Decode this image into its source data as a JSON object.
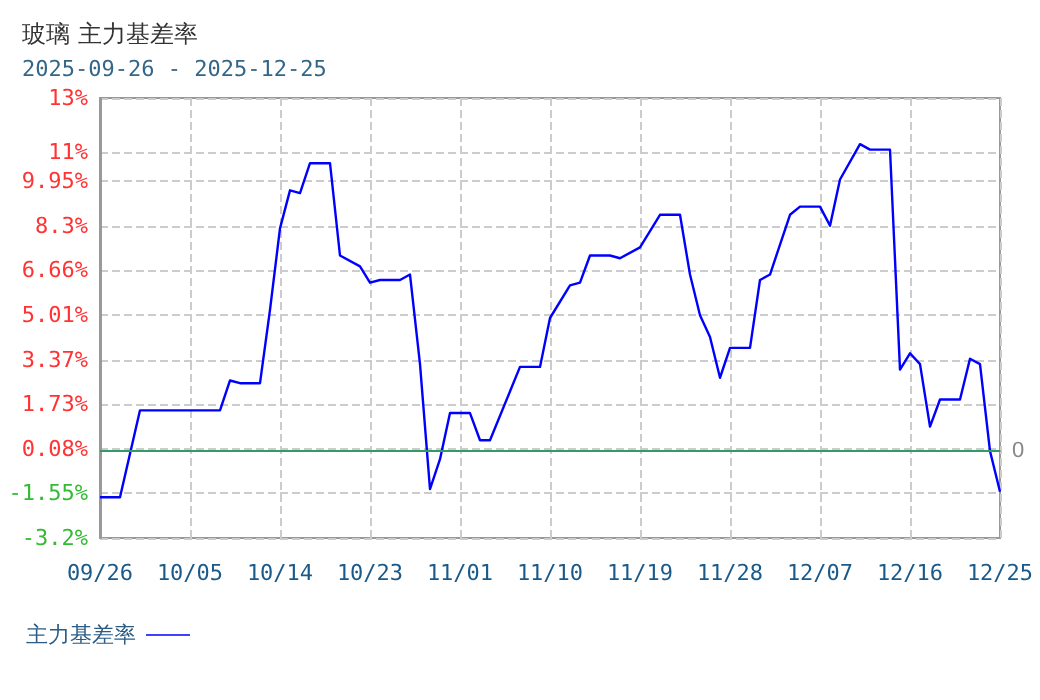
{
  "chart_data": {
    "type": "line",
    "title": "玻璃 主力基差率",
    "subtitle": "2025-09-26 - 2025-12-25",
    "x": [
      "--09-26",
      "--09-28",
      "--09-29",
      "--09-30",
      "--10-08",
      "--10-09",
      "--10-10",
      "--10-12",
      "--10-13",
      "--10-14",
      "--10-15",
      "--10-16",
      "--10-17",
      "--10-19",
      "--10-20",
      "--10-22",
      "--10-23",
      "--10-24",
      "--10-26",
      "--10-27",
      "--10-28",
      "--10-29",
      "--10-30",
      "--10-31",
      "--11-02",
      "--11-03",
      "--11-04",
      "--11-07",
      "--11-09",
      "--11-10",
      "--11-12",
      "--11-13",
      "--11-14",
      "--11-16",
      "--11-17",
      "--11-19",
      "--11-21",
      "--11-23",
      "--11-24",
      "--11-25",
      "--11-26",
      "--11-27",
      "--11-28",
      "--11-30",
      "--12-01",
      "--12-02",
      "--12-04",
      "--12-05",
      "--12-07",
      "--12-08",
      "--12-09",
      "--12-11",
      "--12-12",
      "--12-14",
      "--12-15",
      "--12-16",
      "--12-17",
      "--12-18",
      "--12-19",
      "--12-21",
      "--12-22",
      "--12-23",
      "--12-24",
      "--12-25"
    ],
    "series": [
      {
        "name": "主力基差率",
        "color": "#0000ff",
        "values": [
          -1.7,
          -1.7,
          -0.1,
          1.5,
          1.5,
          2.6,
          2.5,
          2.5,
          5.2,
          8.2,
          9.6,
          9.5,
          10.6,
          10.6,
          7.2,
          6.8,
          6.2,
          6.3,
          6.3,
          6.5,
          3.2,
          -1.4,
          -0.3,
          1.4,
          1.4,
          0.4,
          0.4,
          3.1,
          3.1,
          4.9,
          6.1,
          6.2,
          7.2,
          7.2,
          7.1,
          7.5,
          8.7,
          8.7,
          6.5,
          5.0,
          4.2,
          2.7,
          3.8,
          3.8,
          6.3,
          6.5,
          8.7,
          9.0,
          9.0,
          8.3,
          10.0,
          11.3,
          11.1,
          11.1,
          3.0,
          3.6,
          3.2,
          0.9,
          1.9,
          1.9,
          3.4,
          3.2,
          0.0,
          -1.5
        ]
      }
    ],
    "xlim": [
      "--09-26",
      "--12-25"
    ],
    "xticks": [
      {
        "value": "--09-26",
        "label": "09/26"
      },
      {
        "value": "--10-05",
        "label": "10/05"
      },
      {
        "value": "--10-14",
        "label": "10/14"
      },
      {
        "value": "--10-23",
        "label": "10/23"
      },
      {
        "value": "--11-01",
        "label": "11/01"
      },
      {
        "value": "--11-10",
        "label": "11/10"
      },
      {
        "value": "--11-19",
        "label": "11/19"
      },
      {
        "value": "--11-28",
        "label": "11/28"
      },
      {
        "value": "--12-07",
        "label": "12/07"
      },
      {
        "value": "--12-16",
        "label": "12/16"
      },
      {
        "value": "--12-25",
        "label": "12/25"
      }
    ],
    "ylim": [
      -3.2,
      13
    ],
    "yticks": [
      {
        "value": -3.2,
        "label": "-3.2%"
      },
      {
        "value": -1.55,
        "label": "-1.55%"
      },
      {
        "value": 0.08,
        "label": "0.08%"
      },
      {
        "value": 1.73,
        "label": "1.73%"
      },
      {
        "value": 3.37,
        "label": "3.37%"
      },
      {
        "value": 5.01,
        "label": "5.01%"
      },
      {
        "value": 6.66,
        "label": "6.66%"
      },
      {
        "value": 8.3,
        "label": "8.3%"
      },
      {
        "value": 9.95,
        "label": "9.95%"
      },
      {
        "value": 11,
        "label": "11%"
      },
      {
        "value": 13,
        "label": "13%"
      }
    ],
    "ref_lines": [
      {
        "axis": "y",
        "value": 0,
        "label": "0",
        "color": "#339966"
      }
    ],
    "grid": true,
    "legend": "bottom left",
    "marker": "none",
    "line_style": "solid"
  }
}
